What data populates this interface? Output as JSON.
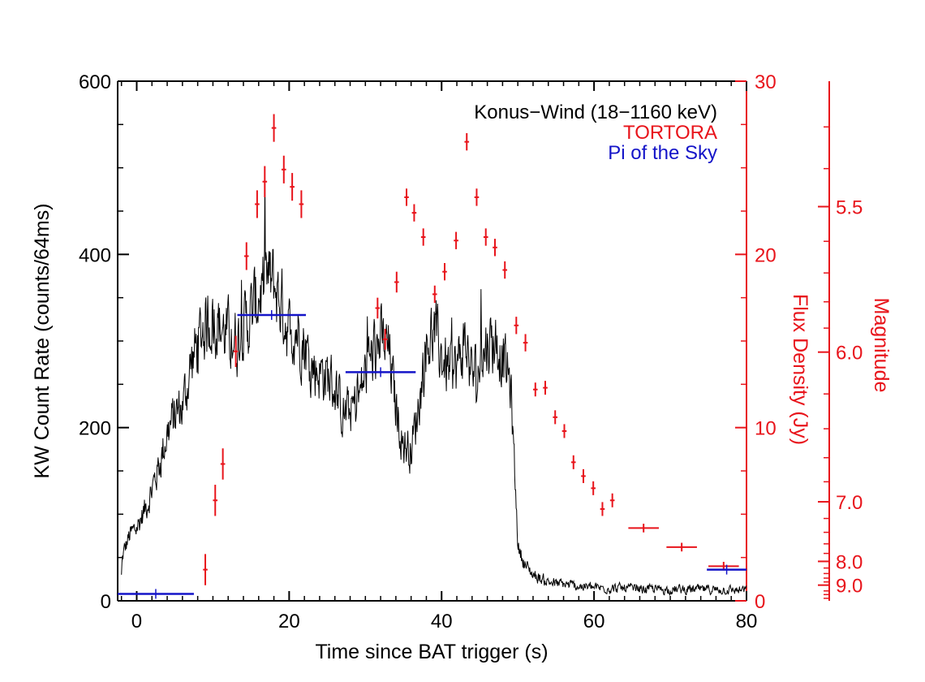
{
  "chart_data": {
    "type": "line",
    "xlabel": "Time since BAT trigger (s)",
    "ylabel": "KW Count Rate (counts/64ms)",
    "y2label": "Flux Density (Jy)",
    "y3label": "Magnitude",
    "xlim": [
      -2.5,
      80
    ],
    "ylim": [
      0,
      600
    ],
    "y2lim": [
      0,
      30
    ],
    "x_ticks": [
      0,
      20,
      40,
      60,
      80
    ],
    "x_tick_labels": [
      "0",
      "20",
      "40",
      "60",
      "80"
    ],
    "y_ticks": [
      0,
      200,
      400,
      600
    ],
    "y_tick_labels": [
      "0",
      "200",
      "400",
      "600"
    ],
    "y2_ticks": [
      0,
      10,
      20,
      30
    ],
    "y2_tick_labels": [
      "0",
      "10",
      "20",
      "30"
    ],
    "y3_labeled_ticks": [
      5.5,
      6.0,
      7.0,
      8.0,
      9.0
    ],
    "y3_tick_labels": [
      "5.5",
      "6.0",
      "7.0",
      "8.0",
      "9.0"
    ],
    "legend": [
      {
        "label": "Konus−Wind (18−1160 keV)",
        "color": "#000000"
      },
      {
        "label": "TORTORA",
        "color": "#e8141b"
      },
      {
        "label": "Pi of the Sky",
        "color": "#1414c8"
      }
    ],
    "series": [
      {
        "name": "Konus−Wind (18−1160 keV)",
        "color": "#000000",
        "style": "line",
        "envelope_t": [
          -2,
          -1,
          0,
          1,
          2,
          3,
          4,
          5,
          6,
          7,
          8,
          9,
          10,
          11,
          12,
          13,
          14,
          15,
          16,
          17,
          18,
          19,
          20,
          21,
          22,
          23,
          24,
          25,
          26,
          27,
          28,
          29,
          30,
          31,
          32,
          33,
          34,
          35,
          36,
          37,
          38,
          39,
          40,
          41,
          42,
          43,
          44,
          45,
          46,
          47,
          48,
          49,
          50,
          51,
          52,
          53,
          54,
          55,
          56,
          57,
          58,
          59,
          60,
          65,
          70,
          75,
          80
        ],
        "envelope_v": [
          50,
          75,
          85,
          105,
          130,
          160,
          195,
          215,
          225,
          270,
          300,
          320,
          330,
          315,
          305,
          300,
          315,
          330,
          355,
          370,
          365,
          340,
          310,
          315,
          295,
          270,
          265,
          260,
          245,
          215,
          220,
          230,
          265,
          285,
          300,
          290,
          220,
          180,
          175,
          230,
          300,
          310,
          280,
          265,
          270,
          300,
          260,
          270,
          300,
          300,
          280,
          250,
          60,
          40,
          30,
          25,
          22,
          20,
          19,
          18,
          17,
          16,
          15,
          14,
          13,
          13,
          12
        ]
      },
      {
        "name": "TORTORA",
        "color": "#e8141b",
        "style": "error-cross",
        "t": [
          9.0,
          10.3,
          11.3,
          13.0,
          14.4,
          15.8,
          16.8,
          18.0,
          19.3,
          20.4,
          21.6,
          31.6,
          32.6,
          34.1,
          35.4,
          36.4,
          37.6,
          39.1,
          40.4,
          41.9,
          43.3,
          44.6,
          45.8,
          47.0,
          48.3,
          49.8,
          51.0,
          52.3,
          53.6,
          54.9,
          56.1,
          57.3,
          58.6,
          59.9,
          61.1,
          62.4,
          66.5,
          71.5,
          77.0
        ],
        "t_err": [
          0.3,
          0.3,
          0.3,
          0.3,
          0.3,
          0.3,
          0.3,
          0.3,
          0.3,
          0.3,
          0.3,
          0.3,
          0.3,
          0.3,
          0.3,
          0.3,
          0.3,
          0.3,
          0.3,
          0.3,
          0.3,
          0.3,
          0.3,
          0.3,
          0.3,
          0.3,
          0.3,
          0.3,
          0.3,
          0.3,
          0.3,
          0.3,
          0.3,
          0.3,
          0.3,
          0.3,
          2.0,
          2.0,
          2.0
        ],
        "flux_jy": [
          1.8,
          5.8,
          7.9,
          14.4,
          19.9,
          22.9,
          24.2,
          27.3,
          24.9,
          23.9,
          22.9,
          16.9,
          15.1,
          18.4,
          23.3,
          22.4,
          21.0,
          17.7,
          19.0,
          20.8,
          26.5,
          23.3,
          21.0,
          20.4,
          19.1,
          15.9,
          14.9,
          12.2,
          12.3,
          10.6,
          9.8,
          8.0,
          7.2,
          6.5,
          5.3,
          5.8,
          4.2,
          3.1,
          2.0
        ],
        "flux_err": [
          0.9,
          0.9,
          0.9,
          0.9,
          0.8,
          0.8,
          0.9,
          0.8,
          0.8,
          0.8,
          0.8,
          0.6,
          0.6,
          0.6,
          0.5,
          0.5,
          0.5,
          0.5,
          0.5,
          0.5,
          0.5,
          0.5,
          0.5,
          0.5,
          0.5,
          0.5,
          0.5,
          0.4,
          0.4,
          0.4,
          0.4,
          0.4,
          0.4,
          0.4,
          0.4,
          0.4,
          0.25,
          0.25,
          0.25
        ]
      },
      {
        "name": "Pi of the Sky",
        "color": "#1414c8",
        "style": "error-bar",
        "t": [
          2.5,
          17.7,
          32.0,
          77.4
        ],
        "t_err": [
          5.0,
          4.5,
          4.6,
          2.6
        ],
        "flux_jy": [
          0.4,
          16.5,
          13.2,
          1.8
        ],
        "flux_err": [
          0.0,
          0.2,
          0.2,
          0.0
        ]
      }
    ]
  }
}
